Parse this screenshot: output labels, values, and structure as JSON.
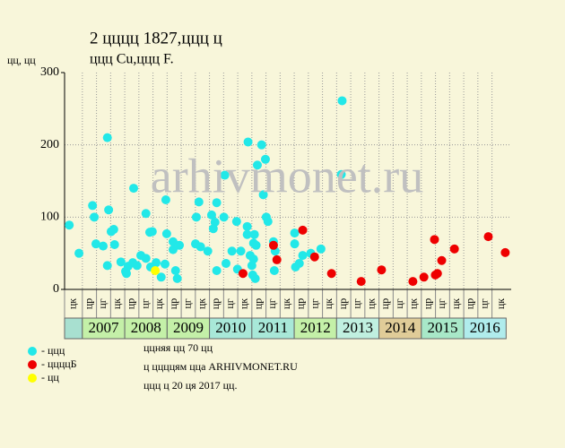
{
  "chart_data": {
    "type": "scatter",
    "title": "2 цццц 1827,ццц ц",
    "subtitle": "ццц Cu,ццц F.",
    "y_label": "цц, цц",
    "watermark": "arhivmonet.ru",
    "xlim": [
      2006.58,
      2017.12
    ],
    "ylim": [
      0,
      300
    ],
    "yticks": [
      0,
      100,
      200,
      300
    ],
    "grid": true,
    "periods": [
      "цк",
      "цр",
      "цг",
      "цк",
      "цр",
      "цг",
      "цк",
      "цр",
      "цг",
      "цк",
      "цр",
      "цг",
      "цк",
      "цр",
      "цг",
      "цк",
      "цр",
      "цг",
      "цк",
      "цр",
      "цг",
      "цк",
      "цр",
      "цг",
      "цк",
      "цр",
      "цг",
      "цк",
      "цр",
      "цг",
      "цк"
    ],
    "years": [
      "2007",
      "2008",
      "2009",
      "2010",
      "2011",
      "2012",
      "2013",
      "2014",
      "2015",
      "2016"
    ],
    "year_colors": [
      "#c4f0a8",
      "#c4f0a8",
      "#c4f0a8",
      "#a8e8d8",
      "#a8e8d8",
      "#c4f0a8",
      "#c0f0e0",
      "#e0cc98",
      "#a8e8c8",
      "#b0ecec"
    ],
    "series": [
      {
        "name": "- ццц",
        "color": "#22e8e8",
        "x": [
          2006.69,
          2006.92,
          2007.24,
          2007.28,
          2007.32,
          2007.49,
          2007.59,
          2007.62,
          2007.59,
          2007.68,
          2007.74,
          2007.76,
          2007.91,
          2008.02,
          2008.04,
          2008.08,
          2008.19,
          2008.21,
          2008.29,
          2008.38,
          2008.5,
          2008.5,
          2008.59,
          2008.65,
          2008.61,
          2008.74,
          2008.86,
          2008.95,
          2008.97,
          2008.99,
          2009.14,
          2009.14,
          2009.2,
          2009.24,
          2009.29,
          2009.69,
          2009.67,
          2009.75,
          2009.79,
          2009.96,
          2010.05,
          2010.09,
          2010.13,
          2010.17,
          2010.17,
          2010.34,
          2010.36,
          2010.39,
          2010.53,
          2010.64,
          2010.66,
          2010.74,
          2010.89,
          2010.91,
          2010.89,
          2010.96,
          2011.0,
          2011.02,
          2011.04,
          2011.04,
          2011.06,
          2011.08,
          2011.1,
          2011.13,
          2011.23,
          2011.27,
          2011.32,
          2011.34,
          2011.38,
          2011.51,
          2011.53,
          2011.55,
          2012.01,
          2012.01,
          2012.03,
          2012.12,
          2012.2,
          2012.39,
          2012.63,
          2013.11,
          2013.13
        ],
        "values": [
          89,
          50,
          116,
          100,
          63,
          60,
          210,
          110,
          33,
          80,
          83,
          62,
          38,
          25,
          22,
          32,
          37,
          140,
          33,
          47,
          105,
          43,
          79,
          80,
          31,
          37,
          17,
          35,
          124,
          77,
          66,
          55,
          26,
          15,
          61,
          100,
          63,
          121,
          59,
          53,
          103,
          84,
          93,
          120,
          26,
          100,
          158,
          36,
          53,
          94,
          28,
          53,
          87,
          204,
          76,
          47,
          33,
          20,
          64,
          42,
          76,
          15,
          61,
          172,
          200,
          131,
          180,
          100,
          94,
          66,
          26,
          53,
          78,
          63,
          31,
          36,
          47,
          50,
          56,
          159,
          261
        ]
      },
      {
        "name": "- ццццБ",
        "color": "#ee0000",
        "x": [
          2010.79,
          2011.51,
          2011.59,
          2012.2,
          2012.48,
          2012.88,
          2013.58,
          2014.06,
          2014.8,
          2015.06,
          2015.31,
          2015.33,
          2015.38,
          2015.48,
          2015.78,
          2016.58,
          2016.98
        ],
        "values": [
          22,
          61,
          41,
          82,
          45,
          22,
          11,
          27,
          11,
          17,
          69,
          20,
          22,
          40,
          56,
          73,
          51
        ]
      },
      {
        "name": "- цц",
        "color": "#ffff00",
        "x": [
          2008.72
        ],
        "values": [
          26
        ]
      }
    ],
    "notes": [
      "ццняя цц 70 цц",
      "ц ццццям цца ARHIVMONET.RU",
      "ццц ц 20 ця 2017 цц."
    ]
  }
}
